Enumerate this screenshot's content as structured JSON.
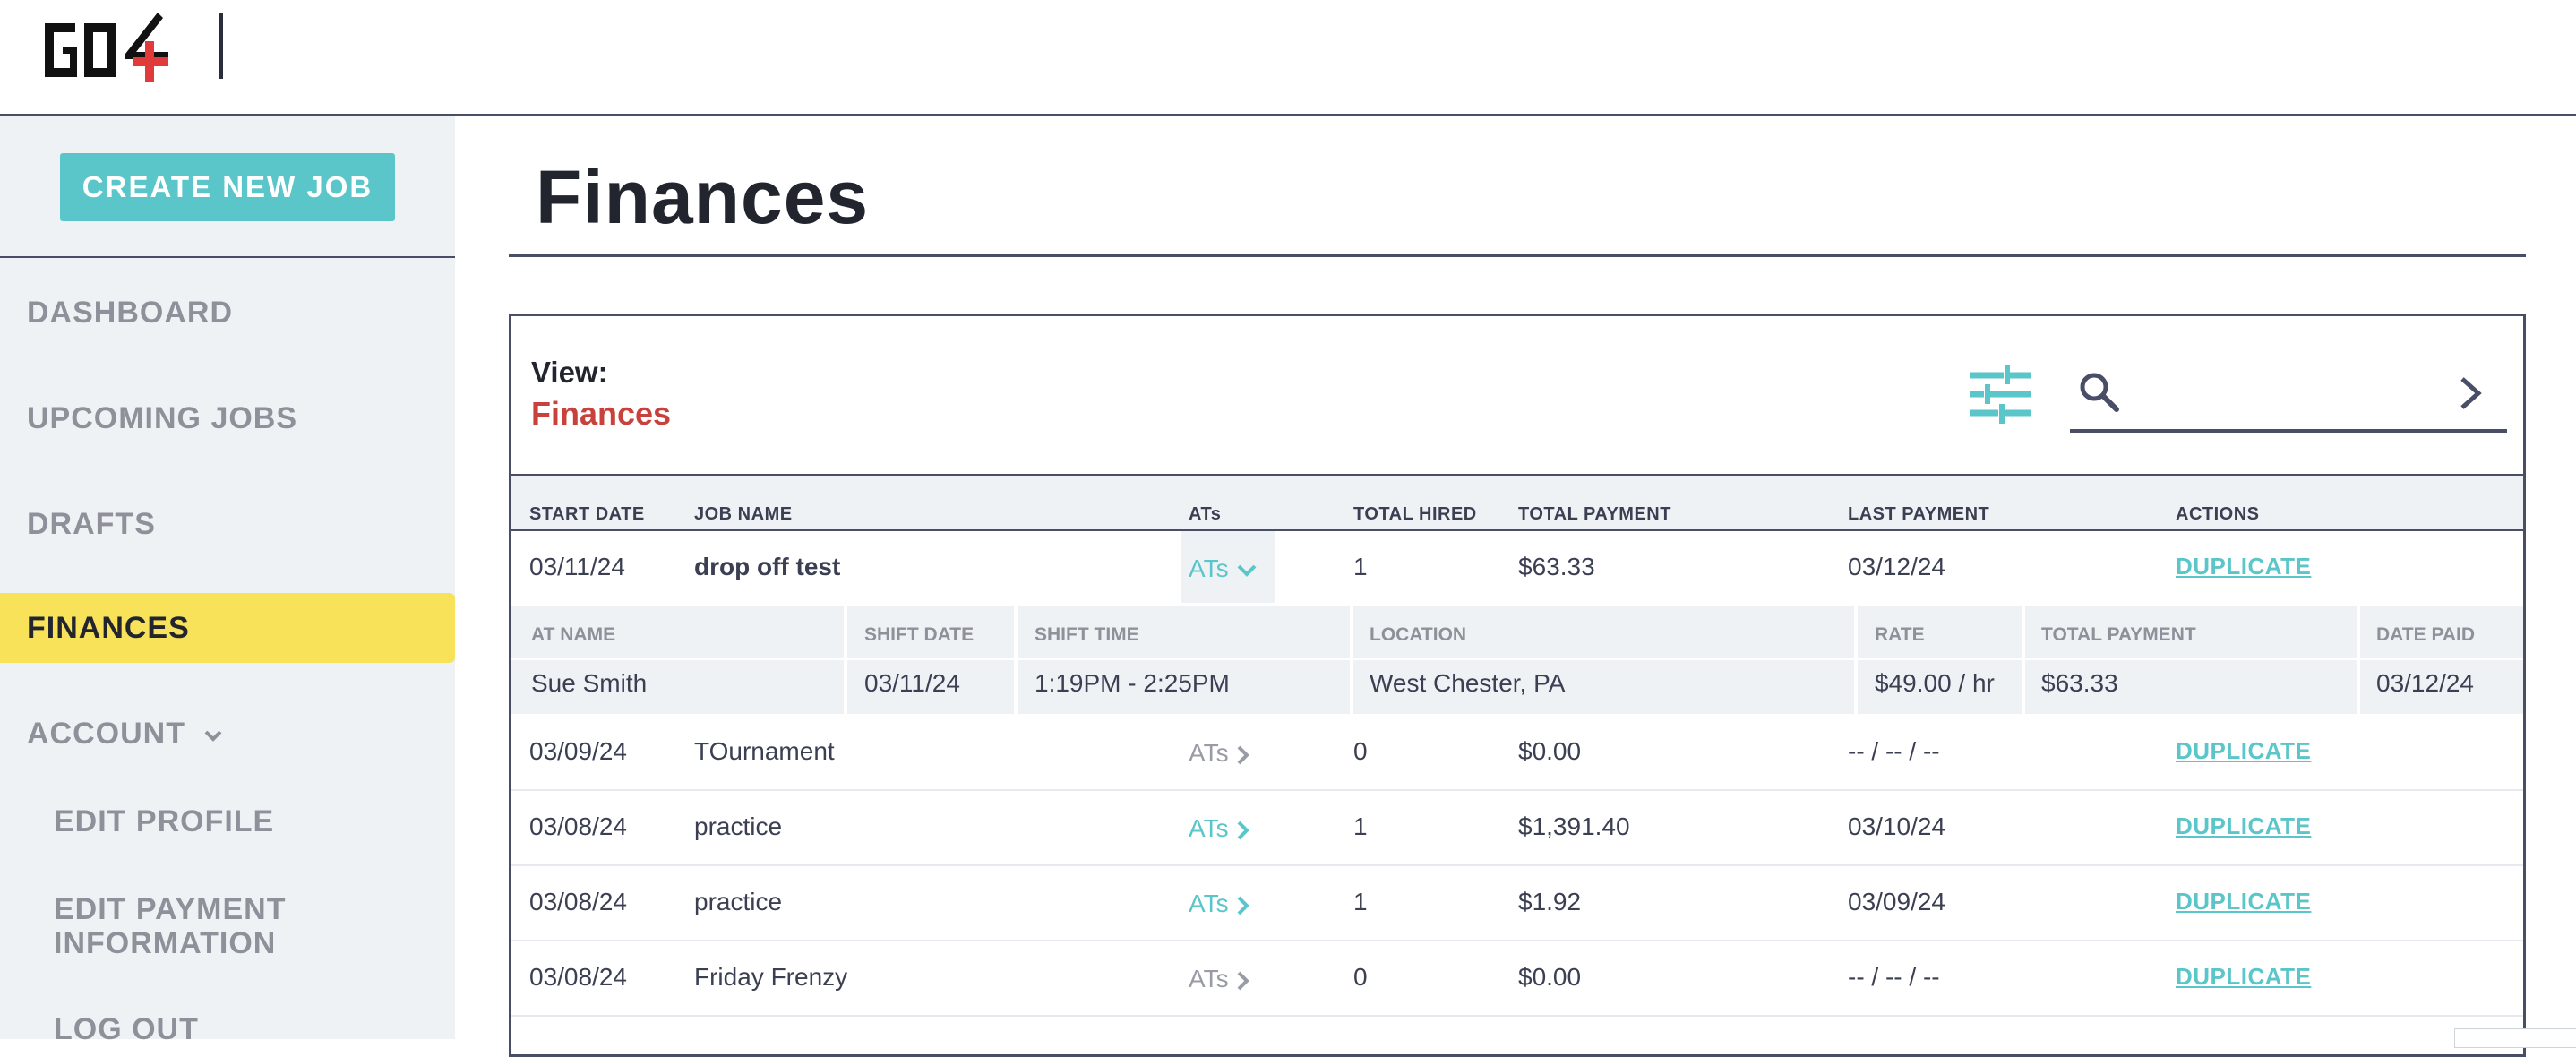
{
  "sidebar": {
    "create_button": "CREATE NEW JOB",
    "items": {
      "dashboard": "DASHBOARD",
      "upcoming": "UPCOMING JOBS",
      "drafts": "DRAFTS",
      "finances": "FINANCES",
      "account": "ACCOUNT",
      "edit_profile": "EDIT PROFILE",
      "edit_payment": "EDIT PAYMENT INFORMATION",
      "logout": "LOG OUT"
    }
  },
  "page": {
    "title": "Finances"
  },
  "panel": {
    "view_label": "View:",
    "view_value": "Finances",
    "search_placeholder": ""
  },
  "table": {
    "headers": {
      "start_date": "START DATE",
      "job_name": "JOB NAME",
      "ats": "ATs",
      "total_hired": "TOTAL HIRED",
      "total_payment": "TOTAL PAYMENT",
      "last_payment": "LAST PAYMENT",
      "actions": "ACTIONS"
    },
    "rows": [
      {
        "start_date": "03/11/24",
        "job_name": "drop off test",
        "ats": "ATs",
        "total_hired": "1",
        "total_payment": "$63.33",
        "last_payment": "03/12/24",
        "action": "DUPLICATE"
      },
      {
        "start_date": "03/09/24",
        "job_name": "TOurnament",
        "ats": "ATs",
        "total_hired": "0",
        "total_payment": "$0.00",
        "last_payment": "-- / -- / --",
        "action": "DUPLICATE"
      },
      {
        "start_date": "03/08/24",
        "job_name": "practice",
        "ats": "ATs",
        "total_hired": "1",
        "total_payment": "$1,391.40",
        "last_payment": "03/10/24",
        "action": "DUPLICATE"
      },
      {
        "start_date": "03/08/24",
        "job_name": "practice",
        "ats": "ATs",
        "total_hired": "1",
        "total_payment": "$1.92",
        "last_payment": "03/09/24",
        "action": "DUPLICATE"
      },
      {
        "start_date": "03/08/24",
        "job_name": "Friday Frenzy",
        "ats": "ATs",
        "total_hired": "0",
        "total_payment": "$0.00",
        "last_payment": "-- / -- / --",
        "action": "DUPLICATE"
      }
    ],
    "subtable": {
      "headers": {
        "at_name": "AT NAME",
        "shift_date": "SHIFT DATE",
        "shift_time": "SHIFT TIME",
        "location": "LOCATION",
        "rate": "RATE",
        "total_payment": "TOTAL PAYMENT",
        "date_paid": "DATE PAID"
      },
      "row": {
        "at_name": "Sue Smith",
        "shift_date": "03/11/24",
        "shift_time": "1:19PM - 2:25PM",
        "location": "West Chester, PA",
        "rate": "$49.00 / hr",
        "total_payment": "$63.33",
        "date_paid": "03/12/24"
      }
    }
  },
  "colors": {
    "teal": "#5bc6c9",
    "red": "#c8413a",
    "yellow": "#f7e25a",
    "navy": "#4a4d66"
  }
}
